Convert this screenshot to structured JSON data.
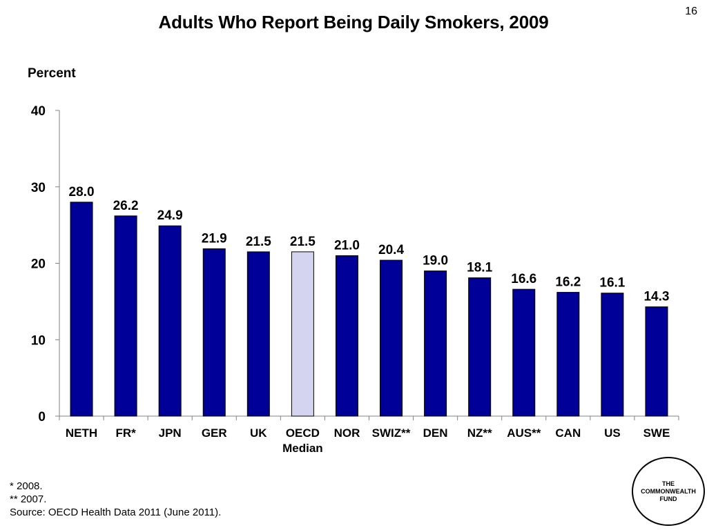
{
  "page_number": "16",
  "chart_data": {
    "type": "bar",
    "title": "Adults Who Report Being Daily Smokers, 2009",
    "ylabel": "Percent",
    "xlabel": "",
    "ylim": [
      0,
      40
    ],
    "yticks": [
      "0",
      "10",
      "20",
      "30",
      "40"
    ],
    "categories": [
      "NETH",
      "FR*",
      "JPN",
      "GER",
      "UK",
      "OECD\nMedian",
      "NOR",
      "SWIZ**",
      "DEN",
      "NZ**",
      "AUS**",
      "CAN",
      "US",
      "SWE"
    ],
    "values": [
      28.0,
      26.2,
      24.9,
      21.9,
      21.5,
      21.5,
      21.0,
      20.4,
      19.0,
      18.1,
      16.6,
      16.2,
      16.1,
      14.3
    ],
    "value_labels": [
      "28.0",
      "26.2",
      "24.9",
      "21.9",
      "21.5",
      "21.5",
      "21.0",
      "20.4",
      "19.0",
      "18.1",
      "16.6",
      "16.2",
      "16.1",
      "14.3"
    ],
    "highlight_index": 5,
    "colors": {
      "bar": "#000099",
      "highlight": "#d4d4f0",
      "axis": "#808080"
    },
    "grid": false
  },
  "notes": [
    "* 2008.",
    "** 2007.",
    "Source: OECD Health Data 2011 (June 2011)."
  ],
  "logo": {
    "text": "THE\nCOMMONWEALTH\nFUND"
  }
}
